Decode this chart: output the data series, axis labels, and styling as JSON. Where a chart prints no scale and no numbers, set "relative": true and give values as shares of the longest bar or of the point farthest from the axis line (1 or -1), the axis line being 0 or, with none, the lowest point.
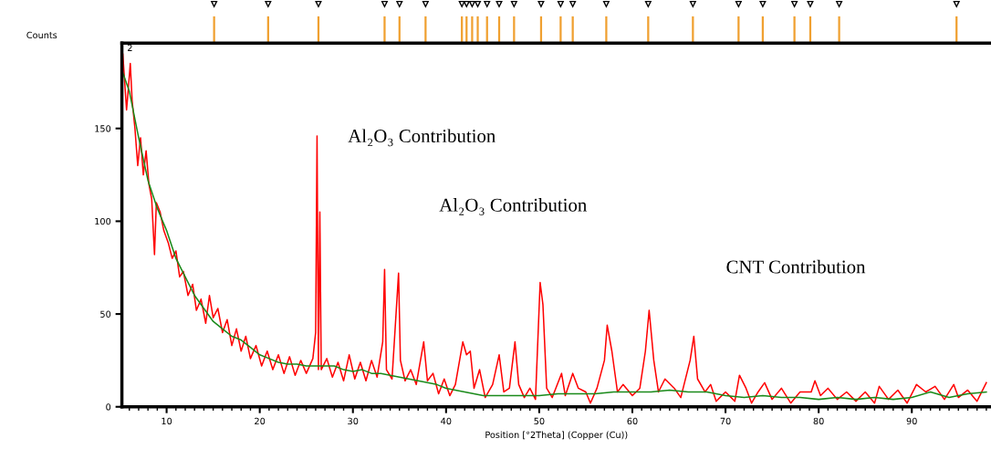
{
  "chart_data": [
    {
      "type": "bar",
      "relative": true,
      "xlim": [
        5.2,
        98.5
      ],
      "x": [
        15.1,
        20.9,
        26.3,
        33.4,
        35.0,
        37.8,
        41.7,
        42.2,
        42.8,
        43.4,
        44.4,
        45.7,
        47.3,
        50.2,
        52.3,
        53.6,
        57.2,
        61.7,
        66.5,
        71.4,
        74.0,
        77.4,
        79.1,
        82.2,
        94.8
      ],
      "color": "#f0a030",
      "values": [
        1,
        1,
        1,
        1,
        1,
        1,
        1,
        1,
        1,
        1,
        1,
        1,
        1,
        1,
        1,
        1,
        1,
        1,
        1,
        1,
        1,
        1,
        1,
        1,
        1
      ]
    },
    {
      "type": "line",
      "xlabel": "Position [°2Theta] (Copper (Cu))",
      "ylabel": "Counts",
      "xlim": [
        5.2,
        98.5
      ],
      "ylim": [
        0,
        196
      ],
      "xticks": [
        10,
        20,
        30,
        40,
        50,
        60,
        70,
        80,
        90
      ],
      "yticks": [
        0,
        50,
        100,
        150
      ],
      "grid": false,
      "marker": "none",
      "line_style": "solid",
      "annotations": [
        "Al₂O₃ Contribution",
        "Al₂O₃ Contribution",
        "CNT Contribution",
        "2"
      ],
      "series": [
        {
          "color": "#ff0000",
          "x": [
            5.3,
            5.5,
            5.7,
            5.9,
            6.1,
            6.3,
            6.6,
            6.9,
            7.2,
            7.5,
            7.8,
            8.1,
            8.4,
            8.7,
            8.9,
            9.3,
            9.7,
            10.2,
            10.6,
            11.0,
            11.4,
            11.8,
            12.3,
            12.8,
            13.2,
            13.7,
            14.2,
            14.6,
            15.0,
            15.5,
            16.0,
            16.5,
            17.0,
            17.5,
            18.0,
            18.5,
            19.0,
            19.6,
            20.2,
            20.8,
            21.4,
            22.0,
            22.6,
            23.2,
            23.8,
            24.4,
            25.0,
            25.7,
            26.0,
            26.15,
            26.3,
            26.45,
            26.6,
            27.2,
            27.8,
            28.4,
            29.0,
            29.6,
            30.2,
            30.8,
            31.4,
            32.0,
            32.6,
            33.2,
            33.4,
            33.6,
            34.2,
            34.9,
            35.1,
            35.6,
            36.2,
            36.8,
            37.6,
            38.0,
            38.6,
            39.2,
            39.8,
            40.4,
            41.0,
            41.8,
            42.2,
            42.6,
            43.0,
            43.6,
            44.2,
            45.0,
            45.7,
            46.2,
            46.8,
            47.4,
            47.8,
            48.4,
            49.0,
            49.6,
            50.1,
            50.4,
            50.8,
            51.4,
            52.4,
            52.8,
            53.6,
            54.2,
            55.0,
            55.5,
            56.2,
            57.0,
            57.3,
            57.8,
            58.4,
            59.0,
            60.0,
            60.8,
            61.4,
            61.8,
            62.3,
            62.8,
            63.5,
            64.5,
            65.2,
            66.2,
            66.6,
            67.0,
            67.8,
            68.4,
            69.0,
            70.0,
            71.0,
            71.5,
            72.2,
            72.8,
            73.5,
            74.2,
            75.0,
            76.0,
            77.0,
            78.0,
            79.2,
            79.6,
            80.2,
            81.0,
            82.0,
            83.0,
            84.0,
            85.0,
            86.0,
            86.5,
            87.5,
            88.5,
            89.5,
            90.5,
            91.5,
            92.5,
            93.5,
            94.5,
            95.0,
            96.0,
            97.0,
            98.0
          ],
          "values": [
            190,
            175,
            160,
            172,
            185,
            165,
            150,
            130,
            145,
            125,
            138,
            120,
            112,
            82,
            110,
            105,
            95,
            88,
            80,
            84,
            70,
            73,
            60,
            66,
            52,
            58,
            45,
            60,
            48,
            53,
            40,
            47,
            33,
            42,
            30,
            38,
            26,
            33,
            22,
            30,
            20,
            28,
            18,
            27,
            17,
            25,
            18,
            26,
            40,
            146,
            20,
            105,
            20,
            26,
            16,
            24,
            14,
            28,
            15,
            24,
            14,
            25,
            16,
            35,
            74,
            20,
            15,
            72,
            25,
            14,
            20,
            12,
            35,
            14,
            18,
            7,
            15,
            6,
            12,
            35,
            28,
            30,
            10,
            20,
            5,
            12,
            28,
            8,
            10,
            35,
            12,
            5,
            10,
            4,
            67,
            55,
            10,
            5,
            18,
            6,
            18,
            10,
            8,
            2,
            10,
            25,
            44,
            30,
            8,
            12,
            6,
            10,
            30,
            52,
            25,
            8,
            15,
            10,
            5,
            25,
            38,
            15,
            8,
            12,
            3,
            8,
            3,
            17,
            10,
            2,
            8,
            13,
            4,
            10,
            2,
            8,
            8,
            14,
            6,
            10,
            4,
            8,
            3,
            8,
            2,
            11,
            4,
            9,
            2,
            12,
            8,
            11,
            4,
            12,
            5,
            9,
            3,
            13
          ]
        },
        {
          "color": "#1a8a1a",
          "x": [
            5.3,
            6,
            7,
            8,
            9,
            10,
            11,
            12,
            13,
            14,
            15,
            16,
            17,
            18,
            19,
            20,
            21,
            22,
            23,
            24,
            25,
            27,
            28,
            29,
            30,
            31,
            32,
            33,
            34,
            35,
            37,
            39,
            40,
            41,
            42,
            44,
            46,
            48,
            50,
            52,
            54,
            56,
            58,
            60,
            62,
            64,
            66,
            68,
            70,
            72,
            74,
            76,
            78,
            80,
            82,
            84,
            86,
            88,
            90,
            92,
            94,
            96,
            98
          ],
          "values": [
            180,
            170,
            145,
            122,
            107,
            95,
            80,
            70,
            60,
            53,
            46,
            42,
            38,
            36,
            32,
            28,
            26,
            24,
            23,
            23,
            22,
            22,
            22,
            20,
            19,
            20,
            18,
            18,
            17,
            16,
            14,
            12,
            10,
            9,
            8,
            6,
            6,
            6,
            6,
            7,
            7,
            7,
            8,
            8,
            8,
            9,
            8,
            8,
            6,
            5,
            6,
            5,
            5,
            4,
            5,
            4,
            5,
            4,
            5,
            8,
            5,
            7,
            8
          ]
        }
      ]
    }
  ]
}
